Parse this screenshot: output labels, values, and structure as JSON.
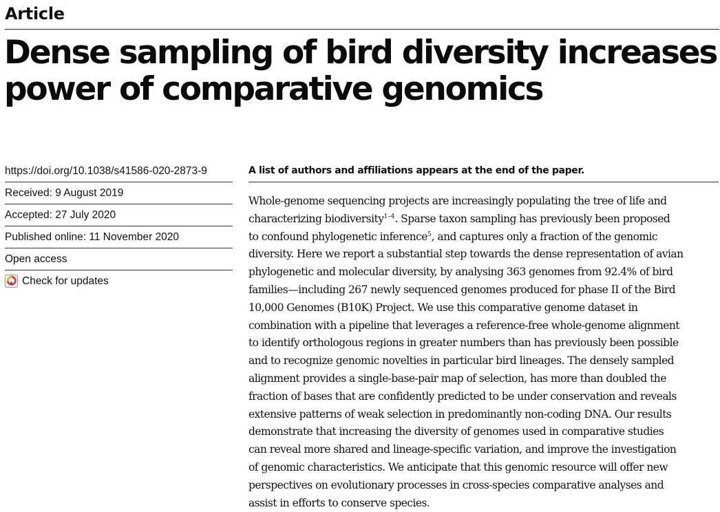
{
  "header": {
    "section_label": "Article",
    "title_lines": [
      "Dense sampling of bird diversity increases",
      "power of comparative genomics"
    ]
  },
  "sidebar": {
    "doi": "https://doi.org/10.1038/s41586-020-2873-9",
    "received": "Received: 9 August 2019",
    "accepted": "Accepted: 27 July 2020",
    "published": "Published online: 11 November 2020",
    "access": "Open access",
    "updates": "Check for updates",
    "updates_icon": "check-for-updates-icon"
  },
  "affiliation_note": "A list of authors and affiliations appears at the end of the paper.",
  "abstract": {
    "l1": "Whole-genome sequencing projects are increasingly populating the tree of life and",
    "l2a": "characterizing biodiversity",
    "l2sup": "1–4",
    "l2b": ". Sparse taxon sampling has previously been proposed",
    "l3a": "to confound phylogenetic inference",
    "l3sup": "5",
    "l3b": ", and captures only a fraction of the genomic",
    "l4": "diversity. Here we report a substantial step towards the dense representation of avian",
    "l5": "phylogenetic and molecular diversity, by analysing 363 genomes from 92.4% of bird",
    "l6": "families—including 267 newly sequenced genomes produced for phase II of the Bird",
    "l7": "10,000 Genomes (B10K) Project. We use this comparative genome dataset in",
    "l8": "combination with a pipeline that leverages a reference-free whole-genome alignment",
    "l9": "to identify orthologous regions in greater numbers than has previously been possible",
    "l10": "and to recognize genomic novelties in particular bird lineages. The densely sampled",
    "l11": "alignment provides a single-base-pair map of selection, has more than doubled the",
    "l12": "fraction of bases that are confidently predicted to be under conservation and reveals",
    "l13": "extensive patterns of weak selection in predominantly non-coding DNA. Our results",
    "l14": "demonstrate that increasing the diversity of genomes used in comparative studies",
    "l15": "can reveal more shared and lineage-specific variation, and improve the investigation",
    "l16": "of genomic characteristics. We anticipate that this genomic resource will offer new",
    "l17": "perspectives on evolutionary processes in cross-species comparative analyses and",
    "l18": "assist in efforts to conserve species."
  }
}
